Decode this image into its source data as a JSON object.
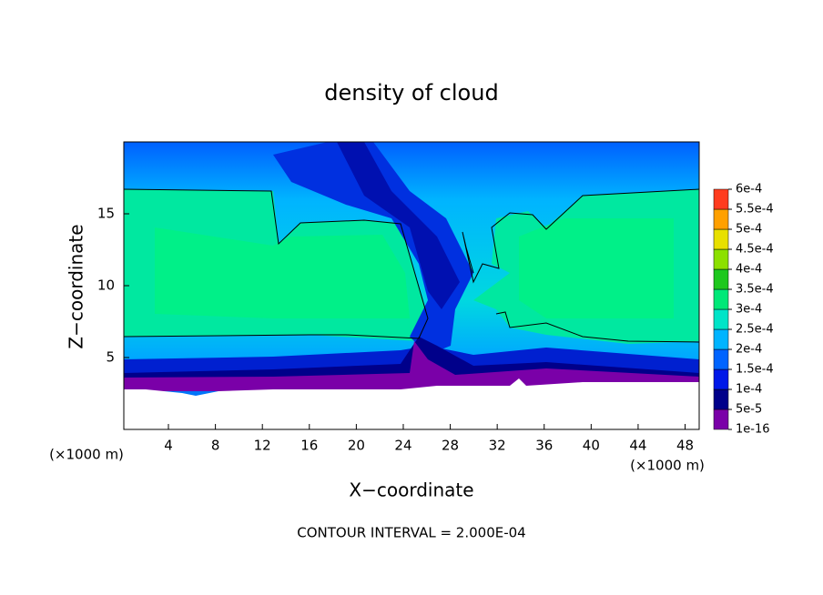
{
  "chart_data": {
    "type": "contour",
    "title": "density of cloud",
    "xlabel": "X−coordinate",
    "ylabel": "Z−coordinate",
    "x_unit_label": "(×1000 m)",
    "x_unit_label_right": "(×1000 m)",
    "annotation": "CONTOUR INTERVAL = 2.000E-04",
    "xlim": [
      0.2,
      49.2
    ],
    "xticks": [
      4,
      8,
      12,
      16,
      20,
      24,
      28,
      32,
      36,
      40,
      44,
      48
    ],
    "ylim": [
      0,
      20
    ],
    "yticks": [
      5,
      10,
      15
    ],
    "colorbar": {
      "lim": [
        0,
        0.0006
      ],
      "ticks": [
        {
          "value": 1e-16,
          "label": "1e-16"
        },
        {
          "value": 5e-05,
          "label": "5e-5"
        },
        {
          "value": 0.0001,
          "label": "1e-4"
        },
        {
          "value": 0.00015,
          "label": "1.5e-4"
        },
        {
          "value": 0.0002,
          "label": "2e-4"
        },
        {
          "value": 0.00025,
          "label": "2.5e-4"
        },
        {
          "value": 0.0003,
          "label": "3e-4"
        },
        {
          "value": 0.00035,
          "label": "3.5e-4"
        },
        {
          "value": 0.0004,
          "label": "4e-4"
        },
        {
          "value": 0.00045,
          "label": "4.5e-4"
        },
        {
          "value": 0.0005,
          "label": "5e-4"
        },
        {
          "value": 0.00055,
          "label": "5.5e-4"
        },
        {
          "value": 0.0006,
          "label": "6e-4"
        }
      ],
      "colors": [
        "#7a00a8",
        "#00008a",
        "#0018e8",
        "#0064ff",
        "#00b4ff",
        "#00e4c8",
        "#00e878",
        "#1ec81e",
        "#8ce000",
        "#e8e000",
        "#ffa000",
        "#ff3c1e"
      ]
    }
  }
}
